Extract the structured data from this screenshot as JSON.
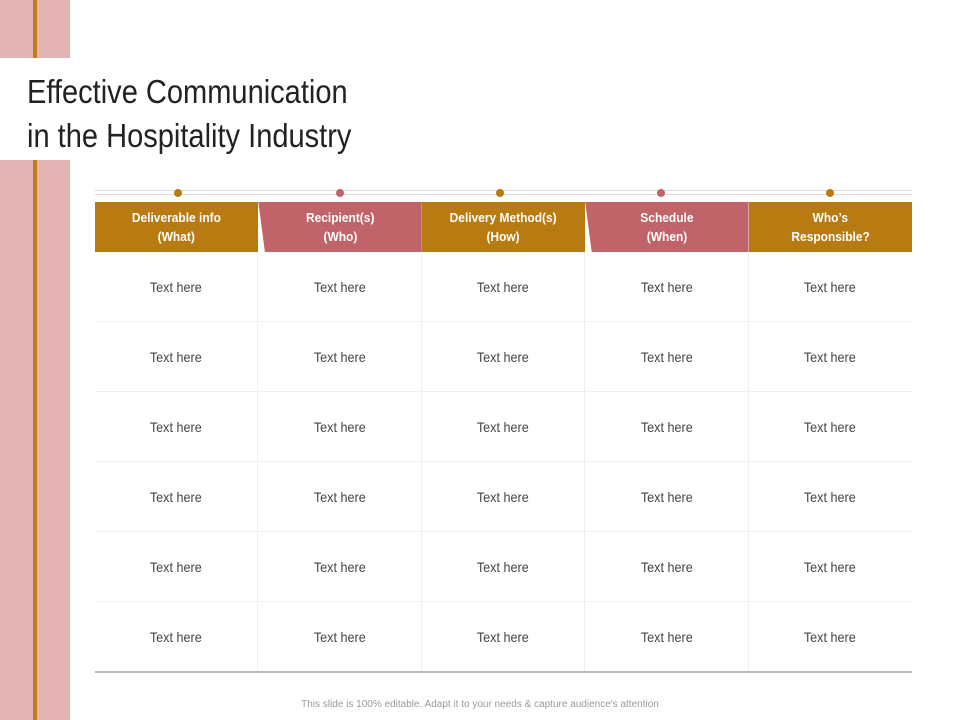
{
  "slide": {
    "title_line1": "Effective Communication",
    "title_line2": "in the Hospitality Industry",
    "footer": "This slide is 100% editable. Adapt it to your needs & capture audience's attention"
  },
  "colors": {
    "accent_orange": "#b87b12",
    "accent_red": "#c0646a",
    "side_band": "#e2b4b4",
    "side_line": "#c07c1a"
  },
  "table": {
    "headers": [
      {
        "line1": "Deliverable info",
        "line2": "(What)"
      },
      {
        "line1": "Recipient(s)",
        "line2": "(Who)"
      },
      {
        "line1": "Delivery Method(s)",
        "line2": "(How)"
      },
      {
        "line1": "Schedule",
        "line2": "(When)"
      },
      {
        "line1": "Who’s",
        "line2": "Responsible?"
      }
    ],
    "rows": [
      [
        "Text here",
        "Text here",
        "Text here",
        "Text here",
        "Text here"
      ],
      [
        "Text here",
        "Text here",
        "Text here",
        "Text here",
        "Text here"
      ],
      [
        "Text here",
        "Text here",
        "Text here",
        "Text here",
        "Text here"
      ],
      [
        "Text here",
        "Text here",
        "Text here",
        "Text here",
        "Text here"
      ],
      [
        "Text here",
        "Text here",
        "Text here",
        "Text here",
        "Text here"
      ],
      [
        "Text here",
        "Text here",
        "Text here",
        "Text here",
        "Text here"
      ]
    ]
  }
}
